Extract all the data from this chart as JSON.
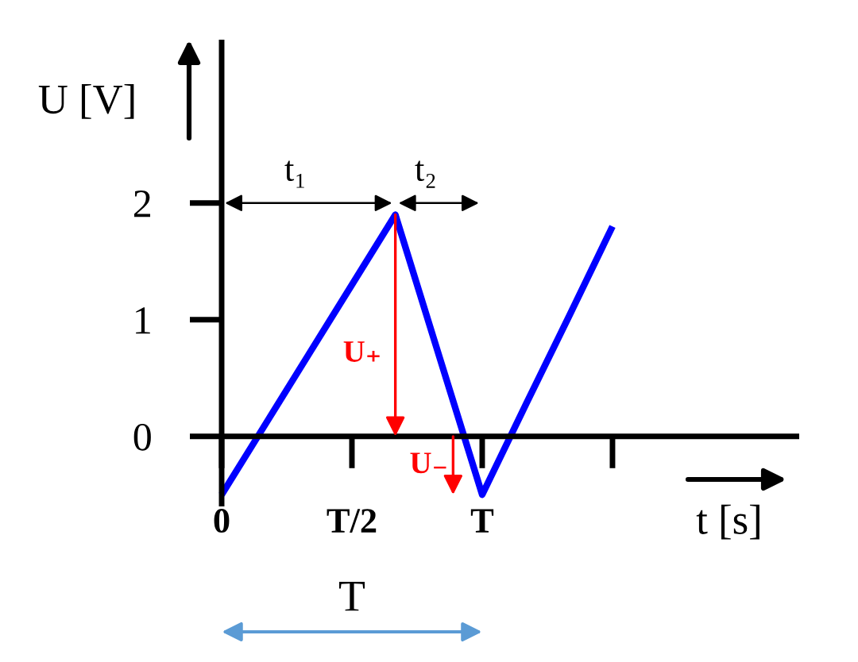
{
  "chart_data": {
    "type": "line",
    "xlabel": "t [s]",
    "ylabel": "U [V]",
    "categories": [
      "0",
      null,
      null,
      "T/2",
      null,
      null,
      "T",
      null,
      null,
      null
    ],
    "values": [
      -0.5,
      0.1,
      0.7,
      1.3,
      1.9,
      0.7,
      -0.5,
      0.27,
      1.03,
      1.8
    ],
    "color": "#0000ff",
    "ylim": [
      -0.6,
      3.4
    ],
    "yticks": [
      0,
      1,
      2
    ],
    "annotations": [
      "t₁",
      "t₂",
      "U₊",
      "U₋",
      "T"
    ]
  }
}
